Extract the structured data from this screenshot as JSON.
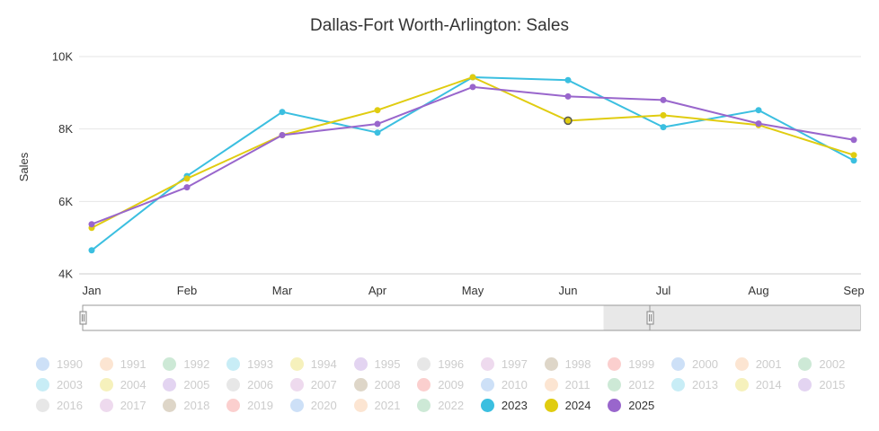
{
  "chart_data": {
    "type": "line",
    "title": "Dallas-Fort Worth-Arlington: Sales",
    "ylabel": "Sales",
    "xlabel": "",
    "categories": [
      "Jan",
      "Feb",
      "Mar",
      "Apr",
      "May",
      "Jun",
      "Jul",
      "Aug",
      "Sep"
    ],
    "y_ticks": [
      {
        "value": 4000,
        "label": "4K"
      },
      {
        "value": 6000,
        "label": "6K"
      },
      {
        "value": 8000,
        "label": "8K"
      },
      {
        "value": 10000,
        "label": "10K"
      }
    ],
    "ylim": [
      4000,
      10000
    ],
    "grid": true,
    "series": [
      {
        "name": "2023",
        "color": "#3bbfe0",
        "values": [
          4650,
          6700,
          8470,
          7900,
          9430,
          9350,
          8050,
          8520,
          7130
        ]
      },
      {
        "name": "2024",
        "color": "#e0cc10",
        "values": [
          5270,
          6630,
          7830,
          8520,
          9430,
          8230,
          8380,
          8110,
          7280
        ]
      },
      {
        "name": "2025",
        "color": "#9966cc",
        "values": [
          5370,
          6390,
          7830,
          8140,
          9160,
          8900,
          8800,
          8150,
          7700
        ]
      }
    ],
    "highlight": {
      "series": "2024",
      "category": "Jun"
    },
    "range_selector": {
      "selected_fraction": 0.67
    },
    "legend": {
      "placement": "bottom",
      "items": [
        {
          "label": "1990",
          "color": "#4a90e2",
          "active": false
        },
        {
          "label": "1991",
          "color": "#f5a25d",
          "active": false
        },
        {
          "label": "1992",
          "color": "#4caf6a",
          "active": false
        },
        {
          "label": "1993",
          "color": "#3bbfe0",
          "active": false
        },
        {
          "label": "1994",
          "color": "#e0cc10",
          "active": false
        },
        {
          "label": "1995",
          "color": "#9966cc",
          "active": false
        },
        {
          "label": "1996",
          "color": "#aaaaaa",
          "active": false
        },
        {
          "label": "1997",
          "color": "#c27bc2",
          "active": false
        },
        {
          "label": "1998",
          "color": "#8a6d3b",
          "active": false
        },
        {
          "label": "1999",
          "color": "#ef5350",
          "active": false
        },
        {
          "label": "2000",
          "color": "#4a90e2",
          "active": false
        },
        {
          "label": "2001",
          "color": "#f5a25d",
          "active": false
        },
        {
          "label": "2002",
          "color": "#4caf6a",
          "active": false
        },
        {
          "label": "2003",
          "color": "#3bbfe0",
          "active": false
        },
        {
          "label": "2004",
          "color": "#e0cc10",
          "active": false
        },
        {
          "label": "2005",
          "color": "#9966cc",
          "active": false
        },
        {
          "label": "2006",
          "color": "#aaaaaa",
          "active": false
        },
        {
          "label": "2007",
          "color": "#c27bc2",
          "active": false
        },
        {
          "label": "2008",
          "color": "#8a6d3b",
          "active": false
        },
        {
          "label": "2009",
          "color": "#ef5350",
          "active": false
        },
        {
          "label": "2010",
          "color": "#4a90e2",
          "active": false
        },
        {
          "label": "2011",
          "color": "#f5a25d",
          "active": false
        },
        {
          "label": "2012",
          "color": "#4caf6a",
          "active": false
        },
        {
          "label": "2013",
          "color": "#3bbfe0",
          "active": false
        },
        {
          "label": "2014",
          "color": "#e0cc10",
          "active": false
        },
        {
          "label": "2015",
          "color": "#9966cc",
          "active": false
        },
        {
          "label": "2016",
          "color": "#aaaaaa",
          "active": false
        },
        {
          "label": "2017",
          "color": "#c27bc2",
          "active": false
        },
        {
          "label": "2018",
          "color": "#8a6d3b",
          "active": false
        },
        {
          "label": "2019",
          "color": "#ef5350",
          "active": false
        },
        {
          "label": "2020",
          "color": "#4a90e2",
          "active": false
        },
        {
          "label": "2021",
          "color": "#f5a25d",
          "active": false
        },
        {
          "label": "2022",
          "color": "#4caf6a",
          "active": false
        },
        {
          "label": "2023",
          "color": "#3bbfe0",
          "active": true
        },
        {
          "label": "2024",
          "color": "#e0cc10",
          "active": true
        },
        {
          "label": "2025",
          "color": "#9966cc",
          "active": true
        }
      ]
    }
  }
}
